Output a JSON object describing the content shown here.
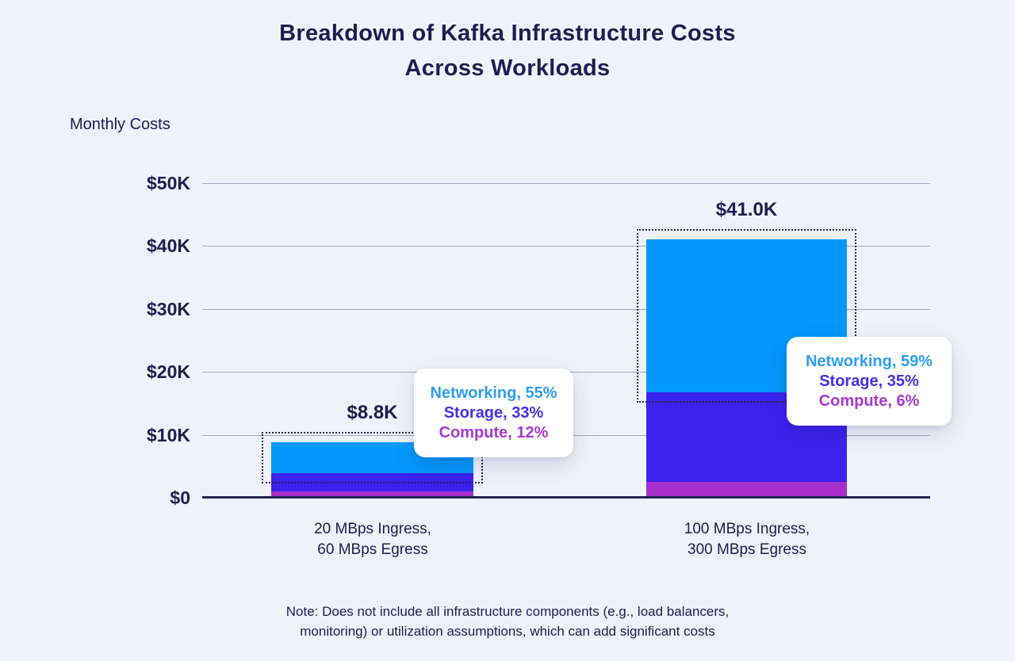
{
  "title": {
    "line1": "Breakdown of Kafka Infrastructure Costs",
    "line2": "Across Workloads"
  },
  "note": {
    "line1": "Note: Does not include all infrastructure components (e.g., load balancers,",
    "line2": "monitoring) or utilization assumptions, which can add significant costs"
  },
  "colors": {
    "background": "#f0f2fb",
    "text_navy": "#1f1c4f",
    "gridline": "#a2a6bc",
    "baseline": "#262450",
    "networking": "#0398fc",
    "storage": "#3b22ee",
    "compute": "#a72ecb",
    "callout_background": "#ffffff",
    "highlight_outline": "#23224f"
  },
  "chart_data": {
    "type": "bar",
    "stacked": true,
    "title": "Breakdown of Kafka Infrastructure Costs Across Workloads",
    "ylabel": "Monthly Costs",
    "xlabel": "",
    "ylim": [
      0,
      50000
    ],
    "grid": true,
    "y_ticks": [
      0,
      10000,
      20000,
      30000,
      40000,
      50000
    ],
    "y_tick_labels": [
      "$0",
      "$10K",
      "$20K",
      "$30K",
      "$40K",
      "$50K"
    ],
    "categories": [
      [
        "20 MBps Ingress,",
        "60 MBps Egress"
      ],
      [
        "100 MBps Ingress,",
        "300 MBps Egress"
      ]
    ],
    "totals": [
      8800,
      41000
    ],
    "total_labels": [
      "$8.8K",
      "$41.0K"
    ],
    "series": [
      {
        "name": "Networking",
        "fill": "#0398fc",
        "text_color": "#2b9ff3",
        "pct": [
          55,
          59
        ]
      },
      {
        "name": "Storage",
        "fill": "#3b22ee",
        "text_color": "#4431e8",
        "pct": [
          33,
          35
        ]
      },
      {
        "name": "Compute",
        "fill": "#a72ecb",
        "text_color": "#a73ad1",
        "pct": [
          12,
          6
        ]
      }
    ],
    "highlight_series": "Networking",
    "callouts": [
      {
        "lines": [
          "Networking, 55%",
          "Storage, 33%",
          "Compute, 12%"
        ]
      },
      {
        "lines": [
          "Networking, 59%",
          "Storage, 35%",
          "Compute, 6%"
        ]
      }
    ]
  }
}
